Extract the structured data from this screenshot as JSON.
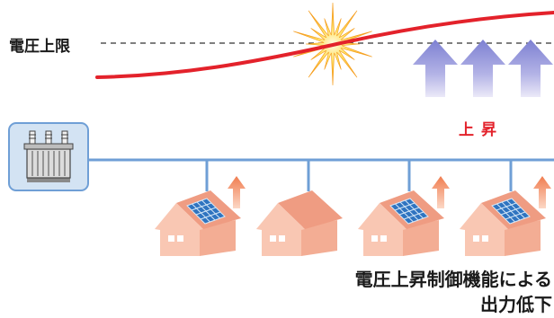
{
  "labels": {
    "voltage_upper_limit": "電圧上限",
    "rise": "上昇",
    "caption_line1": "電圧上昇制御機能による",
    "caption_line2": "出力低下"
  },
  "colors": {
    "voltage_curve": "#e3222b",
    "rise_text": "#e3222b",
    "distribution_line": "#6f9fd6",
    "transformer_frame": "#d3e3f3",
    "house_gable": "#f9c7b3",
    "house_roof": "#ef9c82",
    "house_wall": "#f3ad94",
    "solar_panel": "#2f74c0",
    "voltage_rise_arrow": "#8d8fd8",
    "pv_output_arrow": "#f28a5c"
  },
  "icons": {
    "transformer": "transformer-icon",
    "spark": "spark-icon",
    "solar_panel": "solar-panel-icon",
    "house": "house-icon"
  }
}
